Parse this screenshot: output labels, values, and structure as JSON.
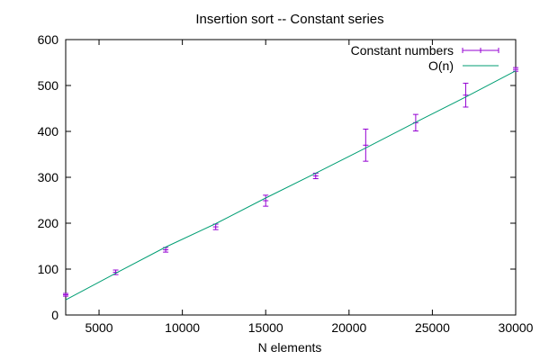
{
  "chart_data": {
    "type": "line",
    "title": "Insertion sort -- Constant series",
    "xlabel": "N elements",
    "ylabel": "",
    "xlim": [
      3000,
      30000
    ],
    "ylim": [
      0,
      600
    ],
    "xticks": [
      5000,
      10000,
      15000,
      20000,
      25000,
      30000
    ],
    "yticks": [
      0,
      100,
      200,
      300,
      400,
      500,
      600
    ],
    "grid": false,
    "legend_position": "top-right",
    "series": [
      {
        "name": "Constant numbers",
        "style": "points-with-errorbars",
        "color": "#9400d3",
        "points": [
          {
            "x": 3000,
            "y": 44,
            "err": 3
          },
          {
            "x": 6000,
            "y": 93,
            "err": 5
          },
          {
            "x": 9000,
            "y": 142,
            "err": 5
          },
          {
            "x": 12000,
            "y": 192,
            "err": 6
          },
          {
            "x": 15000,
            "y": 249,
            "err": 12
          },
          {
            "x": 18000,
            "y": 303,
            "err": 6
          },
          {
            "x": 21000,
            "y": 370,
            "err": 35
          },
          {
            "x": 24000,
            "y": 419,
            "err": 18
          },
          {
            "x": 27000,
            "y": 479,
            "err": 26
          },
          {
            "x": 30000,
            "y": 535,
            "err": 4
          }
        ]
      },
      {
        "name": "O(n)",
        "style": "line",
        "color": "#009e73",
        "points": [
          {
            "x": 3000,
            "y": 33
          },
          {
            "x": 6000,
            "y": 91
          },
          {
            "x": 9000,
            "y": 148
          },
          {
            "x": 12000,
            "y": 199
          },
          {
            "x": 15000,
            "y": 255
          },
          {
            "x": 18000,
            "y": 309
          },
          {
            "x": 21000,
            "y": 364
          },
          {
            "x": 24000,
            "y": 420
          },
          {
            "x": 27000,
            "y": 475
          },
          {
            "x": 30000,
            "y": 532
          }
        ]
      }
    ]
  }
}
